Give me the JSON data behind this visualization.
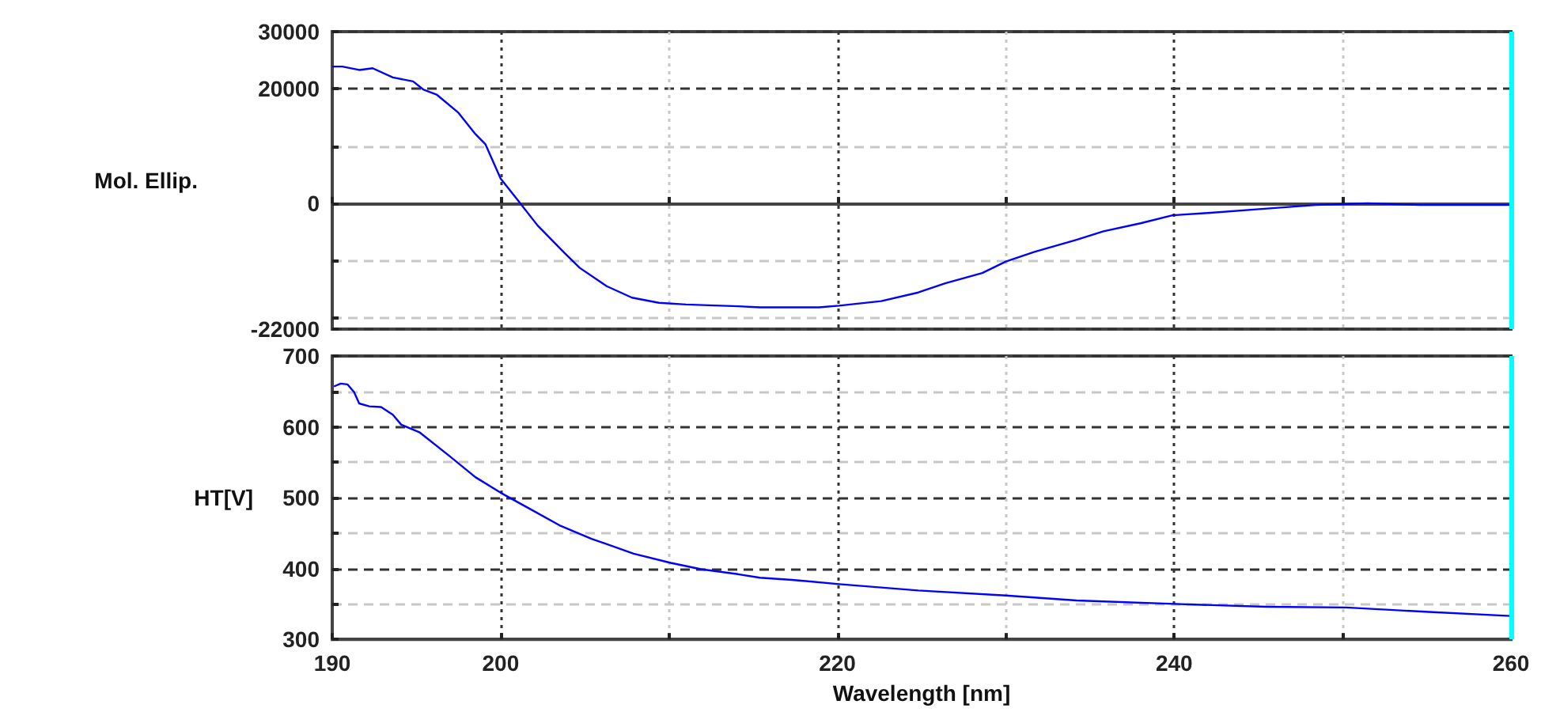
{
  "chart_data": [
    {
      "type": "line",
      "ylabel": "Mol. Ellip.",
      "x": [
        190,
        190.6,
        191.6,
        192.4,
        193.6,
        194.8,
        195.4,
        196.2,
        197.5,
        198.5,
        199.1,
        200,
        201,
        202.2,
        203.8,
        204.7,
        206.3,
        207.8,
        209.4,
        211,
        214.1,
        215.4,
        218.9,
        220.1,
        222.6,
        224.8,
        226.4,
        228.6,
        230,
        231.7,
        234.2,
        235.8,
        238,
        239.9,
        242,
        245.2,
        248.4,
        251.5,
        254.6,
        260
      ],
      "series": [
        {
          "color": "#0000ff",
          "values": [
            23900,
            23900,
            23300,
            23600,
            22000,
            21300,
            19900,
            19000,
            15800,
            12100,
            10300,
            4300,
            600,
            -3900,
            -8700,
            -11300,
            -14500,
            -16500,
            -17400,
            -17700,
            -18000,
            -18200,
            -18200,
            -17900,
            -17100,
            -15600,
            -14000,
            -12200,
            -10200,
            -8500,
            -6400,
            -4900,
            -3500,
            -2100,
            -1700,
            -1000,
            -300,
            0,
            -300,
            -300
          ]
        }
      ],
      "xlim": [
        190,
        260
      ],
      "xticks": [
        190,
        200,
        {
          "value": 210,
          "label": null
        },
        220,
        {
          "value": 230,
          "label": null
        },
        240,
        {
          "value": 250,
          "label": null
        },
        260
      ],
      "ylim": [
        -22000,
        30000
      ],
      "yticks": [
        -22000,
        {
          "value": -20000,
          "label": null
        },
        {
          "value": -10000,
          "label": null
        },
        0,
        {
          "value": 10000,
          "label": null
        },
        20000,
        30000
      ],
      "tick_labels": "y",
      "grid": true,
      "line_style": "solid",
      "marker": "none",
      "ref_lines": [
        {
          "axis": "x",
          "value": 260,
          "color": "#00ffff"
        }
      ]
    },
    {
      "type": "line",
      "xlabel": "Wavelength [nm]",
      "ylabel": "HT[V]",
      "x": [
        190.1,
        190.5,
        190.9,
        191.3,
        191.6,
        192.2,
        192.9,
        193.6,
        194.1,
        195.2,
        196.9,
        198.5,
        200,
        201.6,
        203.5,
        205.4,
        207.9,
        210.1,
        211.9,
        214.1,
        215.4,
        217.3,
        220.1,
        224.8,
        230,
        234.2,
        240,
        245.5,
        250.2,
        254.9,
        260
      ],
      "series": [
        {
          "color": "#0000ff",
          "values": [
            657,
            661,
            660,
            649,
            633,
            629,
            628,
            617,
            603,
            592,
            560,
            529,
            507,
            486,
            461,
            442,
            421,
            408,
            399,
            392,
            387,
            384,
            378,
            369,
            362,
            355,
            350,
            346,
            345,
            339,
            333
          ]
        }
      ],
      "xlim": [
        190,
        260
      ],
      "xticks": [
        190,
        200,
        {
          "value": 210,
          "label": null
        },
        220,
        {
          "value": 230,
          "label": null
        },
        240,
        {
          "value": 250,
          "label": null
        },
        260
      ],
      "ylim": [
        300,
        700
      ],
      "yticks": [
        300,
        {
          "value": 350,
          "label": null
        },
        400,
        {
          "value": 450,
          "label": null
        },
        500,
        {
          "value": 550,
          "label": null
        },
        600,
        {
          "value": 650,
          "label": null
        },
        700
      ],
      "grid": true,
      "line_style": "solid",
      "marker": "none",
      "ref_lines": [
        {
          "axis": "x",
          "value": 260,
          "color": "#00ffff"
        }
      ]
    }
  ]
}
